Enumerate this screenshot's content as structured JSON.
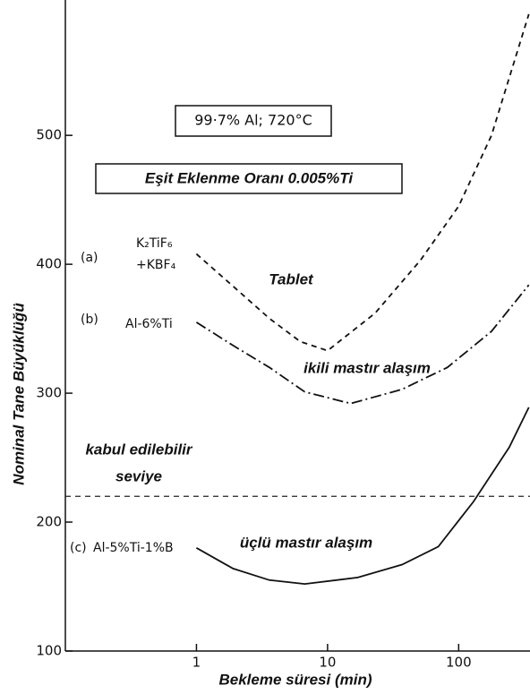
{
  "chart_data": {
    "type": "line",
    "x_log": true,
    "xlabel": "Bekleme süresi (min)",
    "ylabel": "Nominal Tane Büyüklüğü",
    "xlim": [
      0.1,
      350
    ],
    "xticks": [
      1,
      10,
      100
    ],
    "ylim": [
      100,
      605
    ],
    "yticks": [
      100,
      200,
      300,
      400,
      500
    ],
    "annotations": {
      "condition": "99·7% Al; 720°C",
      "rate": "Eşit Eklenme Oranı 0.005%Ti",
      "tablet": "Tablet",
      "binary": "ikili mastır alaşım",
      "ternary": "üçlü mastır alaşım",
      "acceptable": [
        "kabul edilebilir",
        "seviye"
      ]
    },
    "reference_line": {
      "value": 220,
      "style": "dashed",
      "color": "#222222"
    },
    "series": [
      {
        "label": "(a)",
        "name_lines": [
          "K₂TiF₆",
          "+KBF₄"
        ],
        "style": "dashed",
        "color": "#111111",
        "x": [
          1,
          1.9,
          3.6,
          6.2,
          10,
          23,
          51,
          100,
          178,
          343
        ],
        "values": [
          408,
          383,
          358,
          340,
          333,
          362,
          403,
          445,
          500,
          594
        ]
      },
      {
        "label": "(b)",
        "name_lines": [
          "Al-6%Ti"
        ],
        "style": "dashdot",
        "color": "#111111",
        "x": [
          1,
          1.9,
          3.6,
          6.7,
          15,
          37,
          82,
          178,
          343
        ],
        "values": [
          355,
          337,
          320,
          301,
          292,
          303,
          320,
          348,
          384
        ]
      },
      {
        "label": "(c)",
        "name_lines": [
          "Al-5%Ti-1%B"
        ],
        "style": "solid",
        "color": "#111111",
        "x": [
          1,
          1.9,
          3.6,
          6.7,
          17,
          37,
          70,
          130,
          243,
          343
        ],
        "values": [
          180,
          164,
          155,
          152,
          157,
          167,
          181,
          216,
          258,
          289
        ]
      }
    ]
  }
}
